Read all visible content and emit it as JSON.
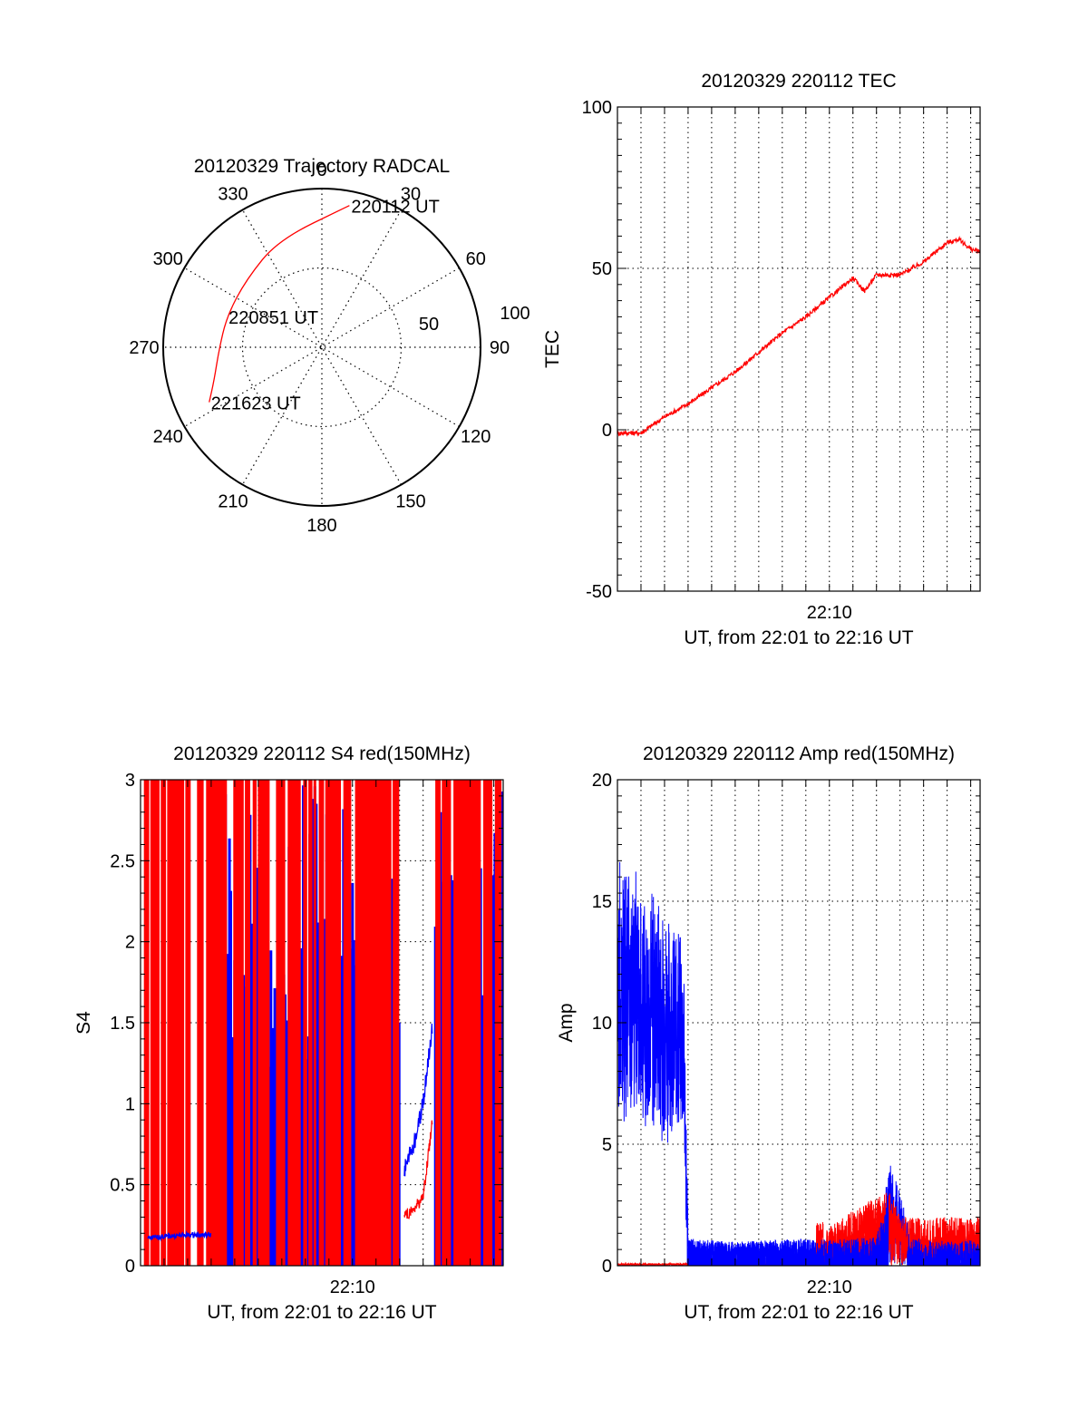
{
  "chart_data": [
    {
      "type": "polar-trajectory",
      "title": "20120329 Trajectory RADCAL",
      "azimuth_labels": [
        {
          "az": 0,
          "label": "0"
        },
        {
          "az": 30,
          "label": "30"
        },
        {
          "az": 60,
          "label": "60"
        },
        {
          "az": 90,
          "label": "90"
        },
        {
          "az": 120,
          "label": "120"
        },
        {
          "az": 150,
          "label": "150"
        },
        {
          "az": 180,
          "label": "180"
        },
        {
          "az": 210,
          "label": "210"
        },
        {
          "az": 240,
          "label": "240"
        },
        {
          "az": 270,
          "label": "270"
        },
        {
          "az": 300,
          "label": "300"
        },
        {
          "az": 330,
          "label": "330"
        }
      ],
      "radius_labels": [
        "50",
        "100"
      ],
      "radius_max": 100,
      "trajectory_color": "#ff0000",
      "trajectory": [
        {
          "az": 11,
          "r": 91
        },
        {
          "az": 338,
          "r": 73
        },
        {
          "az": 312,
          "r": 64
        },
        {
          "az": 288,
          "r": 63
        },
        {
          "az": 268,
          "r": 65
        },
        {
          "az": 253,
          "r": 71
        },
        {
          "az": 244,
          "r": 79
        }
      ],
      "annotations": [
        {
          "label": "220112 UT",
          "az": 11,
          "r": 91
        },
        {
          "label": "220851 UT",
          "az": 288,
          "r": 63
        },
        {
          "label": "221623 UT",
          "az": 244,
          "r": 79
        }
      ]
    },
    {
      "type": "line",
      "title": "20120329 220112 TEC",
      "xlabel": "UT, from 22:01 to 22:16 UT",
      "ylabel": "TEC",
      "xtick_label": "22:10",
      "ylim": [
        -50,
        100
      ],
      "yticks": [
        "-50",
        "0",
        "50",
        "100"
      ],
      "grid": true,
      "series": [
        {
          "color": "#ff0000",
          "x_minutes": [
            0,
            1,
            2,
            3,
            4,
            5,
            6,
            7,
            8,
            9,
            10,
            10.5,
            11,
            12,
            13,
            14,
            14.5,
            15,
            15.4
          ],
          "values": [
            -1,
            -1,
            4,
            8,
            13,
            18,
            24,
            30,
            35,
            41,
            47,
            43,
            48,
            48,
            52,
            58,
            59,
            56,
            55
          ]
        }
      ]
    },
    {
      "type": "line",
      "title": "20120329 220112 S4 red(150MHz)",
      "xlabel": "UT, from 22:01 to 22:16 UT",
      "ylabel": "S4",
      "xtick_label": "22:10",
      "ylim": [
        0,
        3
      ],
      "yticks": [
        "0",
        "0.5",
        "1",
        "1.5",
        "2",
        "2.5",
        "3"
      ],
      "grid": true,
      "series": [
        {
          "color": "#0000ff",
          "x_minutes": [
            0.3,
            1,
            2,
            3,
            11.2,
            11.6,
            12.0,
            12.4
          ],
          "values": [
            0.17,
            0.18,
            0.19,
            0.19,
            0.6,
            0.75,
            1.0,
            1.5
          ]
        },
        {
          "color": "#ff0000",
          "x_minutes": [
            11.2,
            11.6,
            12.0,
            12.4
          ],
          "values": [
            0.3,
            0.35,
            0.42,
            0.9
          ]
        }
      ]
    },
    {
      "type": "line",
      "title": "20120329 220112 Amp red(150MHz)",
      "xlabel": "UT, from 22:01 to 22:16 UT",
      "ylabel": "Amp",
      "xtick_label": "22:10",
      "ylim": [
        0,
        20
      ],
      "yticks": [
        "0",
        "5",
        "10",
        "15",
        "20"
      ],
      "grid": true,
      "series": [
        {
          "color": "#0000ff",
          "x_minutes": [
            0,
            0.5,
            1,
            1.5,
            2,
            2.5,
            2.8,
            3.0,
            5,
            8,
            11,
            11.6,
            12.0,
            12.4,
            13,
            15.5
          ],
          "values": [
            15,
            14.5,
            14,
            13.5,
            13,
            12.5,
            12.5,
            0.8,
            0.7,
            0.8,
            0.9,
            3.0,
            2.2,
            1.0,
            0.8,
            0.8
          ]
        },
        {
          "color": "#ff0000",
          "x_minutes": [
            0,
            2.8,
            8.5,
            8.7,
            11.6,
            12.0
          ],
          "values": [
            0.1,
            0.1,
            0.3,
            1.5,
            3.2,
            2.0
          ]
        }
      ]
    }
  ]
}
